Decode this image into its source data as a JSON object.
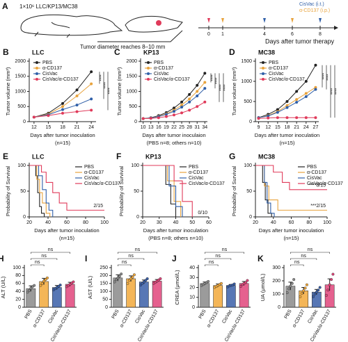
{
  "diagram": {
    "label": "A",
    "cells": "1×10⁶ LLC/KP13/MC38",
    "event": "Tumor diameter reaches 8–10 mm",
    "legend": [
      "CisVac (i.t.)",
      "α-CD137 (i.p.)"
    ],
    "timeline_ticks": [
      0,
      1,
      4,
      6,
      8
    ],
    "timeline_label": "Days after tumor therapy"
  },
  "chart_data": [
    {
      "type": "line",
      "label": "B",
      "title": "LLC",
      "ylabel": "Tumor volume (mm³)",
      "xlabel": "Days after tumor inoculation",
      "note": "(n=15)",
      "x": [
        12,
        15,
        18,
        21,
        24
      ],
      "xlim": [
        11,
        25
      ],
      "ylim": [
        0,
        2000
      ],
      "yticks": [
        0,
        500,
        1000,
        1500,
        2000
      ],
      "sig": [
        "****",
        "****",
        "****"
      ],
      "series": [
        {
          "name": "PBS",
          "color": "#222222",
          "values": [
            150,
            280,
            600,
            1050,
            1650
          ]
        },
        {
          "name": "α-CD137",
          "color": "#e8a33d",
          "values": [
            150,
            250,
            500,
            850,
            1250
          ]
        },
        {
          "name": "CisVac",
          "color": "#2f5fa8",
          "values": [
            150,
            230,
            400,
            550,
            750
          ]
        },
        {
          "name": "CisVac/α-CD137",
          "color": "#e03a5a",
          "values": [
            150,
            200,
            280,
            330,
            380
          ]
        }
      ]
    },
    {
      "type": "line",
      "label": "C",
      "title": "KP13",
      "ylabel": "Tumor volume (mm³)",
      "xlabel": "Days after tumor inoculaion",
      "note": "(PBS n=8; others n=10)",
      "x": [
        10,
        13,
        16,
        19,
        22,
        25,
        28,
        31,
        34
      ],
      "xlim": [
        9,
        35
      ],
      "ylim": [
        0,
        2000
      ],
      "yticks": [
        0,
        500,
        1000,
        1500,
        2000
      ],
      "sig": [
        "****",
        "****",
        "****",
        "****"
      ],
      "series": [
        {
          "name": "PBS",
          "color": "#222222",
          "values": [
            100,
            130,
            200,
            300,
            450,
            650,
            900,
            1200,
            1600
          ]
        },
        {
          "name": "α-CD137",
          "color": "#e8a33d",
          "values": [
            100,
            120,
            180,
            260,
            380,
            550,
            750,
            1000,
            1300
          ]
        },
        {
          "name": "CisVac",
          "color": "#2f5fa8",
          "values": [
            100,
            120,
            170,
            240,
            340,
            480,
            650,
            850,
            1100
          ]
        },
        {
          "name": "CisVac/α-CD137",
          "color": "#e03a5a",
          "values": [
            100,
            110,
            130,
            170,
            220,
            290,
            380,
            500,
            650
          ]
        }
      ]
    },
    {
      "type": "line",
      "label": "D",
      "title": "MC38",
      "ylabel": "Tumor volume (mm³)",
      "xlabel": "Days after tumor inoculation",
      "note": "(n=15)",
      "x": [
        9,
        12,
        15,
        18,
        21,
        24,
        27
      ],
      "xlim": [
        8,
        28
      ],
      "ylim": [
        0,
        1500
      ],
      "yticks": [
        0,
        500,
        1000,
        1500
      ],
      "sig": [
        "****",
        "****",
        "****",
        "****"
      ],
      "series": [
        {
          "name": "PBS",
          "color": "#222222",
          "values": [
            100,
            180,
            300,
            500,
            750,
            1000,
            1400
          ]
        },
        {
          "name": "α-CD137",
          "color": "#e8a33d",
          "values": [
            100,
            150,
            250,
            400,
            550,
            700,
            850
          ]
        },
        {
          "name": "CisVac",
          "color": "#2f5fa8",
          "values": [
            100,
            140,
            230,
            350,
            480,
            620,
            800
          ]
        },
        {
          "name": "CisVac/α-CD137",
          "color": "#e03a5a",
          "values": [
            80,
            90,
            100,
            100,
            100,
            100,
            100
          ]
        }
      ]
    },
    {
      "type": "step",
      "label": "E",
      "title": "LLC",
      "ylabel": "Probability of Survival",
      "xlabel": "Days after tumor inoculation",
      "note": "(n=15)",
      "xlim": [
        20,
        100
      ],
      "xticks": [
        20,
        40,
        60,
        80,
        100
      ],
      "ylim": [
        0,
        100
      ],
      "yticks": [
        0,
        50,
        100
      ],
      "series": [
        {
          "name": "PBS",
          "color": "#222222",
          "x": [
            20,
            27,
            29,
            31,
            33,
            36
          ],
          "values": [
            100,
            80,
            47,
            20,
            7,
            0
          ]
        },
        {
          "name": "α-CD137",
          "color": "#e8a33d",
          "x": [
            20,
            28,
            31,
            34,
            38,
            42
          ],
          "values": [
            100,
            73,
            47,
            27,
            7,
            0
          ]
        },
        {
          "name": "CisVac",
          "color": "#2f5fa8",
          "x": [
            20,
            30,
            34,
            38,
            41,
            45
          ],
          "values": [
            100,
            80,
            53,
            27,
            13,
            0
          ]
        },
        {
          "name": "CisVac/α-CD137",
          "color": "#e03a5a",
          "x": [
            20,
            33,
            38,
            45,
            52,
            60,
            100
          ],
          "values": [
            100,
            87,
            67,
            47,
            27,
            13,
            13
          ],
          "end_label": "2/15"
        }
      ]
    },
    {
      "type": "step",
      "label": "F",
      "title": "KP13",
      "ylabel": "Probability of Survival",
      "xlabel": "Days after tumor inoculation",
      "note": "(PBS n=8; others n=10)",
      "xlim": [
        20,
        60
      ],
      "xticks": [
        20,
        30,
        40,
        50,
        60
      ],
      "ylim": [
        0,
        100
      ],
      "yticks": [
        0,
        50,
        100
      ],
      "series": [
        {
          "name": "PBS",
          "color": "#222222",
          "x": [
            20,
            34,
            37,
            40
          ],
          "values": [
            100,
            63,
            25,
            0
          ]
        },
        {
          "name": "α-CD137",
          "color": "#e8a33d",
          "x": [
            20,
            35,
            39,
            43
          ],
          "values": [
            100,
            70,
            30,
            0
          ]
        },
        {
          "name": "CisVac",
          "color": "#2f5fa8",
          "x": [
            20,
            36,
            40,
            44
          ],
          "values": [
            100,
            60,
            20,
            0
          ]
        },
        {
          "name": "CisVac/α-CD137",
          "color": "#e03a5a",
          "x": [
            20,
            39,
            44,
            50
          ],
          "values": [
            100,
            70,
            30,
            0
          ],
          "end_label": "0/10"
        }
      ]
    },
    {
      "type": "step",
      "label": "G",
      "title": "MC38",
      "ylabel": "Probability of Survival",
      "xlabel": "Days after tumor inoculation",
      "note": "(n=15)",
      "xlim": [
        20,
        100
      ],
      "xticks": [
        20,
        40,
        60,
        80,
        100
      ],
      "ylim": [
        0,
        100
      ],
      "yticks": [
        0,
        50,
        100
      ],
      "series": [
        {
          "name": "PBS",
          "color": "#222222",
          "x": [
            20,
            28,
            31,
            34,
            38
          ],
          "values": [
            100,
            67,
            33,
            7,
            0
          ]
        },
        {
          "name": "α-CD137",
          "color": "#e8a33d",
          "x": [
            20,
            30,
            35,
            45,
            55,
            100
          ],
          "values": [
            100,
            60,
            33,
            13,
            13,
            13
          ],
          "end_label": "***2/15"
        },
        {
          "name": "CisVac",
          "color": "#2f5fa8",
          "x": [
            20,
            30,
            33,
            37,
            41
          ],
          "values": [
            100,
            67,
            27,
            7,
            0
          ]
        },
        {
          "name": "CisVac/α-CD137",
          "color": "#e03a5a",
          "x": [
            20,
            40,
            50,
            58,
            100
          ],
          "values": [
            100,
            87,
            67,
            53,
            53
          ],
          "end_label": "****8/15"
        }
      ]
    },
    {
      "type": "bar",
      "label": "H",
      "ylabel": "ALT (U/L)",
      "categories": [
        "PBS",
        "α-CD137",
        "CisVac",
        "CisVac/α-CD137"
      ],
      "colors": [
        "#8a8a8a",
        "#f2a93b",
        "#3a5fa8",
        "#e0457b"
      ],
      "values": [
        47,
        65,
        50,
        58
      ],
      "errors": [
        7,
        8,
        5,
        5
      ],
      "points": [
        [
          38,
          42,
          48,
          52,
          55
        ],
        [
          55,
          60,
          66,
          70,
          74
        ],
        [
          44,
          47,
          50,
          53,
          56
        ],
        [
          52,
          55,
          58,
          61,
          64
        ]
      ],
      "ylim": [
        0,
        100
      ],
      "yticks": [
        0,
        20,
        40,
        60,
        80,
        100
      ],
      "sig": [
        "ns",
        "ns",
        "ns"
      ]
    },
    {
      "type": "bar",
      "label": "I",
      "ylabel": "AST (U/L)",
      "categories": [
        "PBS",
        "α-CD137",
        "CisVac",
        "CisVac/α-CD137"
      ],
      "colors": [
        "#8a8a8a",
        "#f2a93b",
        "#3a5fa8",
        "#e0457b"
      ],
      "values": [
        185,
        180,
        160,
        165
      ],
      "errors": [
        20,
        18,
        12,
        10
      ],
      "points": [
        [
          160,
          175,
          185,
          195,
          210
        ],
        [
          150,
          170,
          180,
          190,
          205
        ],
        [
          140,
          150,
          160,
          170,
          180
        ],
        [
          150,
          158,
          165,
          172,
          180
        ]
      ],
      "ylim": [
        0,
        250
      ],
      "yticks": [
        0,
        50,
        100,
        150,
        200,
        250
      ],
      "sig": [
        "ns",
        "ns",
        "ns"
      ]
    },
    {
      "type": "bar",
      "label": "J",
      "ylabel": "CREA (μmol/L)",
      "categories": [
        "PBS",
        "α-CD137",
        "CisVac",
        "CisVac/α-CD137"
      ],
      "colors": [
        "#8a8a8a",
        "#f2a93b",
        "#3a5fa8",
        "#e0457b"
      ],
      "values": [
        24,
        22,
        22,
        24
      ],
      "errors": [
        1.5,
        1.5,
        1,
        2
      ],
      "points": [
        [
          22,
          23,
          24,
          25,
          26
        ],
        [
          20,
          21,
          22,
          23,
          24
        ],
        [
          20.5,
          21.5,
          22,
          22.5,
          23.5
        ],
        [
          21,
          23,
          24,
          25,
          27
        ]
      ],
      "ylim": [
        0,
        40
      ],
      "yticks": [
        0,
        10,
        20,
        30,
        40
      ],
      "sig": [
        "ns",
        "ns",
        "ns"
      ]
    },
    {
      "type": "bar",
      "label": "K",
      "ylabel": "UA (μmol/L)",
      "categories": [
        "PBS",
        "α-CD137",
        "CisVac",
        "CisVac/α-CD137"
      ],
      "colors": [
        "#8a8a8a",
        "#f2a93b",
        "#3a5fa8",
        "#e0457b"
      ],
      "values": [
        160,
        125,
        115,
        170
      ],
      "errors": [
        30,
        25,
        20,
        45
      ],
      "points": [
        [
          110,
          140,
          160,
          180,
          210
        ],
        [
          80,
          105,
          125,
          145,
          170
        ],
        [
          80,
          100,
          115,
          130,
          150
        ],
        [
          90,
          130,
          170,
          210,
          250
        ]
      ],
      "ylim": [
        0,
        300
      ],
      "yticks": [
        0,
        100,
        200,
        300
      ],
      "sig": [
        "ns",
        "ns",
        "ns"
      ]
    }
  ]
}
